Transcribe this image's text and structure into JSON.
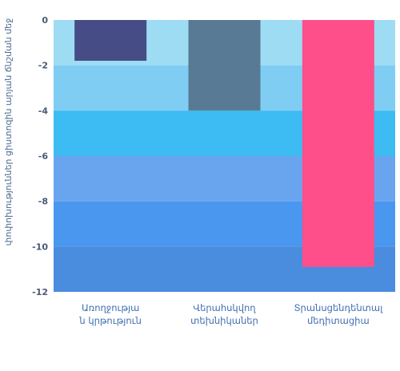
{
  "chart_data": {
    "type": "bar",
    "title": "",
    "xlabel": "",
    "ylabel": "փոփոխություններ ցիստոզին արյան ճնշման մեջ",
    "categories": [
      [
        "Առողջությա",
        "ն կրթություն"
      ],
      [
        "Վերահսկվող",
        "տեխնիկաներ"
      ],
      [
        "Տրանսցենդենտալ",
        "մեդիտացիա"
      ]
    ],
    "values": [
      -1.8,
      -4.0,
      -10.9
    ],
    "bar_colors": [
      "#464d86",
      "#587a94",
      "#ff4f8b"
    ],
    "ylim": [
      -12,
      0
    ],
    "yticks": [
      0,
      -2,
      -4,
      -6,
      -8,
      -10,
      -12
    ],
    "bands": [
      {
        "from": 0,
        "to": -2,
        "color": "#9edcf4"
      },
      {
        "from": -2,
        "to": -4,
        "color": "#7fcdf3"
      },
      {
        "from": -4,
        "to": -6,
        "color": "#3cbcf2"
      },
      {
        "from": -6,
        "to": -8,
        "color": "#69a5ef"
      },
      {
        "from": -8,
        "to": -10,
        "color": "#4a97ef"
      },
      {
        "from": -10,
        "to": -12,
        "color": "#4a8cdd"
      }
    ],
    "grid": false,
    "legend": "none"
  }
}
